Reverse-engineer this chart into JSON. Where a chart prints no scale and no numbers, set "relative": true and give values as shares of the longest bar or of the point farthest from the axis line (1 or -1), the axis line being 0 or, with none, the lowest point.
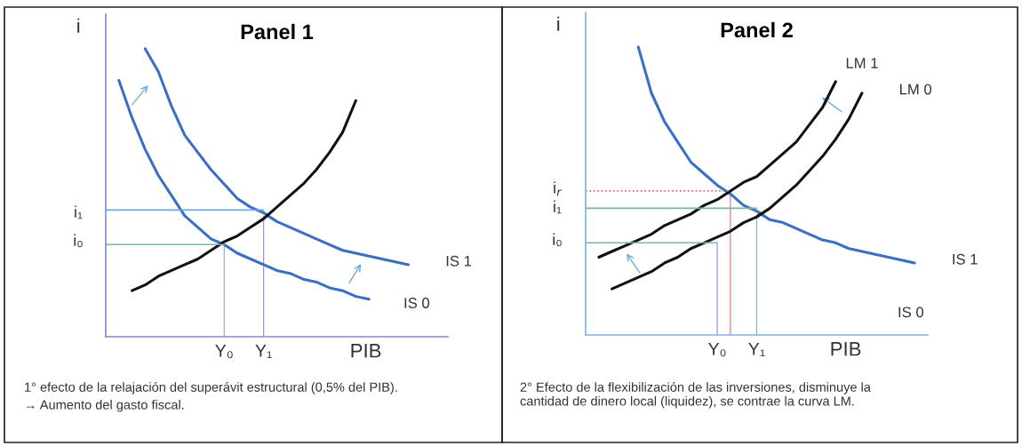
{
  "chart_data": [
    {
      "type": "line",
      "title": "Panel 1",
      "xlabel": "PIB",
      "ylabel": "i",
      "relative": true,
      "legend": false,
      "categories": [
        null,
        null,
        null,
        null,
        null,
        null,
        null,
        null,
        null,
        "Y₀",
        null,
        null,
        "Y₁",
        null,
        null,
        null,
        null,
        null,
        null,
        null,
        null,
        null,
        null,
        null,
        null,
        null,
        null
      ],
      "series": [
        {
          "name": "IS 0",
          "color": "#3a6fc4",
          "values": [
            null,
            0.89,
            0.76,
            0.65,
            0.56,
            0.49,
            0.42,
            0.38,
            0.34,
            0.32,
            0.29,
            0.27,
            0.25,
            0.23,
            0.22,
            0.2,
            0.19,
            0.17,
            0.16,
            0.14,
            0.13,
            null,
            null,
            null,
            null,
            null,
            null
          ]
        },
        {
          "name": "IS 1",
          "color": "#3a6fc4",
          "values": [
            null,
            null,
            null,
            1.0,
            0.92,
            0.8,
            0.7,
            0.64,
            0.58,
            0.53,
            0.48,
            0.45,
            0.43,
            0.4,
            0.38,
            0.36,
            0.34,
            0.32,
            0.3,
            0.29,
            0.28,
            0.27,
            0.26,
            0.25,
            null,
            null,
            null
          ]
        },
        {
          "color": "#111111",
          "values": [
            null,
            null,
            0.16,
            0.18,
            0.21,
            0.23,
            0.25,
            0.27,
            0.3,
            0.33,
            0.35,
            0.38,
            0.41,
            0.45,
            0.49,
            0.53,
            0.58,
            0.64,
            0.71,
            0.82,
            null,
            null,
            null,
            null,
            null,
            null,
            null
          ]
        },
        {
          "color": "#6fa8dc",
          "values": [
            0.44,
            0.44,
            0.44,
            0.44,
            0.44,
            0.44,
            0.44,
            0.44,
            0.44,
            0.44,
            0.44,
            0.44,
            0.44,
            null,
            null,
            null,
            null,
            null,
            null,
            null,
            null,
            null,
            null,
            null,
            null,
            null,
            null
          ]
        },
        {
          "color": "#76b5a5",
          "values": [
            0.32,
            0.32,
            0.32,
            0.32,
            0.32,
            0.32,
            0.32,
            0.32,
            0.32,
            0.32,
            null,
            null,
            null,
            null,
            null,
            null,
            null,
            null,
            null,
            null,
            null,
            null,
            null,
            null,
            null,
            null,
            null
          ]
        },
        {
          "type": "bar",
          "color": "#6fa8dc",
          "values": [
            null,
            null,
            null,
            null,
            null,
            null,
            null,
            null,
            null,
            0.32,
            null,
            null,
            null,
            null,
            null,
            null,
            null,
            null,
            null,
            null,
            null,
            null,
            null,
            null,
            null,
            null,
            null
          ]
        },
        {
          "type": "bar",
          "color": "#8a7fd0",
          "values": [
            null,
            null,
            null,
            null,
            null,
            null,
            null,
            null,
            null,
            null,
            null,
            null,
            0.42,
            null,
            null,
            null,
            null,
            null,
            null,
            null,
            null,
            null,
            null,
            null,
            null,
            null,
            null
          ]
        }
      ],
      "annotations": [
        "i₁",
        "i₀",
        "1° efecto de la relajación del superávit estructural (0,5% del PIB).",
        "→ Aumento del gasto fiscal."
      ]
    },
    {
      "type": "line",
      "title": "Panel 2",
      "xlabel": "PIB",
      "ylabel": "i",
      "relative": true,
      "legend": false,
      "categories": [
        null,
        null,
        null,
        null,
        null,
        null,
        null,
        null,
        null,
        null,
        "Y₀",
        null,
        null,
        "Y₁",
        null,
        null,
        null,
        null,
        null,
        null,
        null,
        null,
        null,
        null,
        null,
        null,
        null
      ],
      "series": [
        {
          "name": "IS 1",
          "color": "#3a6fc4",
          "values": [
            null,
            null,
            null,
            null,
            1.0,
            0.84,
            0.74,
            0.67,
            0.6,
            0.56,
            0.52,
            0.49,
            0.45,
            0.43,
            0.4,
            0.39,
            0.37,
            0.35,
            0.33,
            0.32,
            0.3,
            0.29,
            0.28,
            0.27,
            0.26,
            0.25,
            null
          ]
        },
        {
          "name": "LM 1",
          "color": "#111111",
          "values": [
            null,
            0.27,
            0.29,
            0.31,
            0.33,
            0.35,
            0.38,
            0.4,
            0.42,
            0.45,
            0.47,
            0.5,
            0.53,
            0.55,
            0.59,
            0.63,
            0.67,
            0.73,
            0.79,
            0.88,
            null,
            null,
            null,
            null,
            null,
            null,
            null
          ]
        },
        {
          "name": "LM 0",
          "color": "#111111",
          "values": [
            null,
            null,
            0.16,
            0.18,
            0.2,
            0.22,
            0.25,
            0.27,
            0.3,
            0.32,
            0.34,
            0.36,
            0.39,
            0.41,
            0.44,
            0.48,
            0.52,
            0.57,
            0.62,
            0.68,
            0.75,
            0.84,
            null,
            null,
            null,
            null,
            null
          ]
        },
        {
          "color": "#e06666",
          "line_style": "dotted",
          "values": [
            0.5,
            0.5,
            0.5,
            0.5,
            0.5,
            0.5,
            0.5,
            0.5,
            0.5,
            0.5,
            0.5,
            0.5,
            null,
            null,
            null,
            null,
            null,
            null,
            null,
            null,
            null,
            null,
            null,
            null,
            null,
            null,
            null
          ]
        },
        {
          "color": "#76b5a5",
          "values": [
            0.44,
            0.44,
            0.44,
            0.44,
            0.44,
            0.44,
            0.44,
            0.44,
            0.44,
            0.44,
            0.44,
            0.44,
            0.44,
            0.44,
            null,
            null,
            null,
            null,
            null,
            null,
            null,
            null,
            null,
            null,
            null,
            null,
            null
          ]
        },
        {
          "color": "#76b5a5",
          "values": [
            0.32,
            0.32,
            0.32,
            0.32,
            0.32,
            0.32,
            0.32,
            0.32,
            0.32,
            0.32,
            0.32,
            null,
            null,
            null,
            null,
            null,
            null,
            null,
            null,
            null,
            null,
            null,
            null,
            null,
            null,
            null,
            null
          ]
        },
        {
          "type": "bar",
          "color": "#e06666",
          "values": [
            null,
            null,
            null,
            null,
            null,
            null,
            null,
            null,
            null,
            null,
            null,
            0.5,
            null,
            null,
            null,
            null,
            null,
            null,
            null,
            null,
            null,
            null,
            null,
            null,
            null,
            null,
            null
          ]
        },
        {
          "type": "bar",
          "color": "#76b5a5",
          "values": [
            null,
            null,
            null,
            null,
            null,
            null,
            null,
            null,
            null,
            null,
            null,
            null,
            null,
            0.42,
            null,
            null,
            null,
            null,
            null,
            null,
            null,
            null,
            null,
            null,
            null,
            null,
            null
          ]
        },
        {
          "type": "bar",
          "color": "#8a7fd0",
          "values": [
            null,
            null,
            null,
            null,
            null,
            null,
            null,
            null,
            null,
            null,
            0.32,
            null,
            null,
            null,
            null,
            null,
            null,
            null,
            null,
            null,
            null,
            null,
            null,
            null,
            null,
            null,
            null
          ]
        }
      ],
      "annotations": [
        "i$_{r}$",
        "i₁",
        "i₀",
        "IS 0",
        "2° Efecto de la flexibilización de las inversiones, disminuye la\ncantidad de dinero local (liquidez), se contrae la curva LM."
      ]
    }
  ]
}
